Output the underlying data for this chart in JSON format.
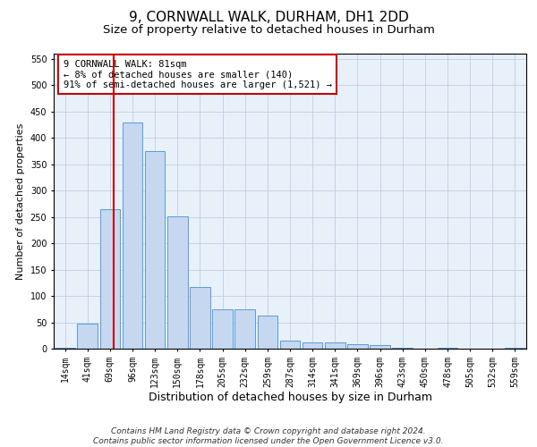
{
  "title": "9, CORNWALL WALK, DURHAM, DH1 2DD",
  "subtitle": "Size of property relative to detached houses in Durham",
  "xlabel": "Distribution of detached houses by size in Durham",
  "ylabel": "Number of detached properties",
  "categories": [
    "14sqm",
    "41sqm",
    "69sqm",
    "96sqm",
    "123sqm",
    "150sqm",
    "178sqm",
    "205sqm",
    "232sqm",
    "259sqm",
    "287sqm",
    "314sqm",
    "341sqm",
    "369sqm",
    "396sqm",
    "423sqm",
    "450sqm",
    "478sqm",
    "505sqm",
    "532sqm",
    "559sqm"
  ],
  "values": [
    2,
    47,
    265,
    430,
    375,
    252,
    117,
    75,
    75,
    62,
    15,
    12,
    12,
    8,
    6,
    2,
    0,
    2,
    0,
    0,
    2
  ],
  "bar_color": "#c5d8f0",
  "bar_edge_color": "#5b9bd5",
  "vline_color": "#cc0000",
  "vline_index": 2.18,
  "annotation_box_text": "9 CORNWALL WALK: 81sqm\n← 8% of detached houses are smaller (140)\n91% of semi-detached houses are larger (1,521) →",
  "annotation_box_color": "#cc0000",
  "ylim": [
    0,
    560
  ],
  "yticks": [
    0,
    50,
    100,
    150,
    200,
    250,
    300,
    350,
    400,
    450,
    500,
    550
  ],
  "grid_color": "#c0cfe0",
  "background_color": "#e8f0fa",
  "footer_text": "Contains HM Land Registry data © Crown copyright and database right 2024.\nContains public sector information licensed under the Open Government Licence v3.0.",
  "title_fontsize": 11,
  "subtitle_fontsize": 9.5,
  "xlabel_fontsize": 9,
  "ylabel_fontsize": 8,
  "tick_fontsize": 7,
  "footer_fontsize": 6.5
}
